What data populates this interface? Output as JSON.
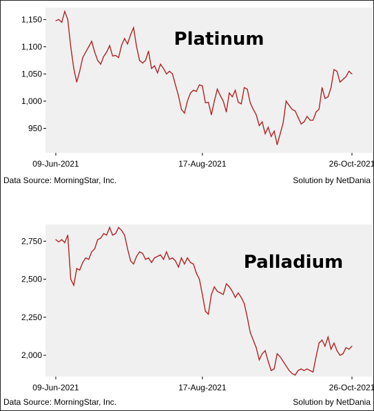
{
  "colors": {
    "line": "#b22222",
    "background": "#f0f0f0",
    "frame": "#222222"
  },
  "chart_data": [
    {
      "type": "line",
      "title": "Platinum",
      "xlabel": "",
      "ylabel": "",
      "ylim": [
        905,
        1172
      ],
      "yticks": [
        "950",
        "1,000",
        "1,050",
        "1,100",
        "1,150"
      ],
      "ytick_values": [
        950,
        1000,
        1050,
        1100,
        1150
      ],
      "xticks": [
        "09-Jun-2021",
        "17-Aug-2021",
        "26-Oct-2021"
      ],
      "xtick_index": [
        0,
        49,
        99
      ],
      "grid": false,
      "legend": "none",
      "footer_left": "Data Source: MorningStar, Inc.",
      "footer_right": "Solution by NetDania",
      "series": [
        {
          "values": [
            1148,
            1150,
            1145,
            1165,
            1150,
            1100,
            1060,
            1035,
            1055,
            1080,
            1090,
            1100,
            1110,
            1090,
            1075,
            1068,
            1082,
            1090,
            1102,
            1083,
            1084,
            1080,
            1103,
            1115,
            1105,
            1122,
            1135,
            1100,
            1075,
            1070,
            1075,
            1092,
            1060,
            1065,
            1052,
            1068,
            1060,
            1050,
            1055,
            1050,
            1030,
            1010,
            985,
            978,
            1000,
            1015,
            1020,
            1018,
            1030,
            1028,
            997,
            998,
            975,
            1000,
            1022,
            1010,
            1000,
            980,
            1015,
            1008,
            1020,
            998,
            995,
            1025,
            1022,
            997,
            985,
            975,
            955,
            962,
            940,
            952,
            935,
            945,
            920,
            940,
            960,
            1000,
            992,
            985,
            982,
            970,
            958,
            962,
            972,
            965,
            965,
            980,
            985,
            1025,
            1005,
            1008,
            1025,
            1058,
            1055,
            1035,
            1040,
            1045,
            1055,
            1050
          ]
        }
      ]
    },
    {
      "type": "line",
      "title": "Palladium",
      "xlabel": "",
      "ylabel": "",
      "ylim": [
        1860,
        2860
      ],
      "yticks": [
        "2,000",
        "2,250",
        "2,500",
        "2,750"
      ],
      "ytick_values": [
        2000,
        2250,
        2500,
        2750
      ],
      "xticks": [
        "09-Jun-2021",
        "17-Aug-2021",
        "26-Oct-2021"
      ],
      "xtick_index": [
        0,
        49,
        99
      ],
      "grid": false,
      "legend": "none",
      "footer_left": "Data Source: MorningStar, Inc.",
      "footer_right": "Solution by NetDania",
      "series": [
        {
          "values": [
            2760,
            2745,
            2760,
            2740,
            2790,
            2500,
            2460,
            2570,
            2560,
            2610,
            2640,
            2630,
            2680,
            2700,
            2760,
            2770,
            2800,
            2790,
            2840,
            2790,
            2800,
            2840,
            2820,
            2790,
            2700,
            2620,
            2600,
            2650,
            2680,
            2670,
            2630,
            2640,
            2610,
            2640,
            2650,
            2660,
            2630,
            2680,
            2630,
            2640,
            2620,
            2580,
            2640,
            2600,
            2640,
            2610,
            2600,
            2540,
            2500,
            2400,
            2290,
            2270,
            2400,
            2450,
            2420,
            2410,
            2400,
            2470,
            2450,
            2420,
            2380,
            2410,
            2380,
            2340,
            2250,
            2150,
            2100,
            2050,
            1970,
            2010,
            2030,
            1960,
            1900,
            1910,
            2010,
            1990,
            1960,
            1930,
            1900,
            1880,
            1870,
            1900,
            1910,
            1900,
            1910,
            1900,
            1890,
            1990,
            2080,
            2100,
            2060,
            2120,
            2040,
            2080,
            2030,
            2000,
            2010,
            2050,
            2040,
            2060
          ]
        }
      ]
    }
  ]
}
